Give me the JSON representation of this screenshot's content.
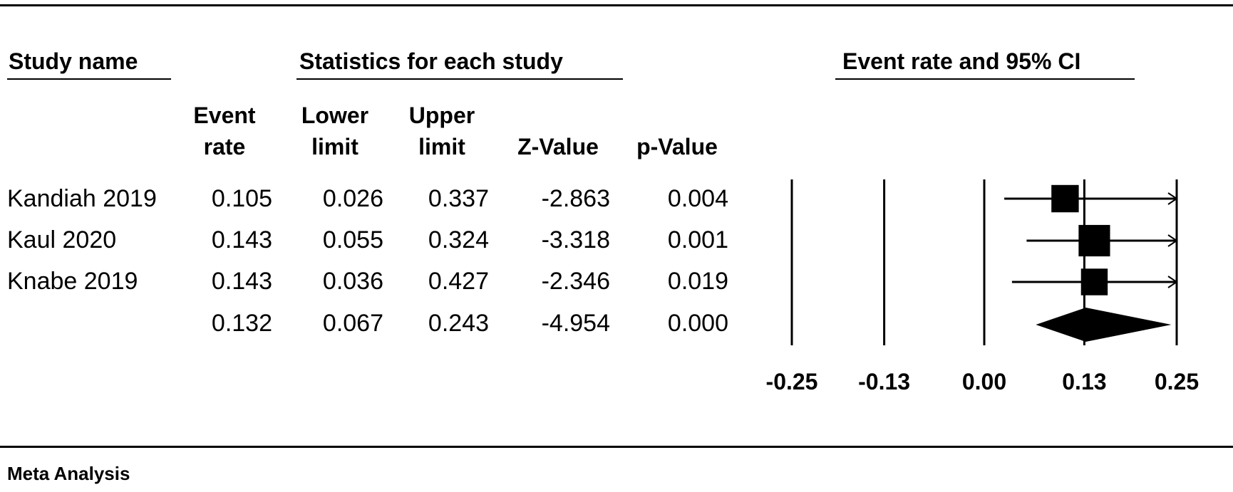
{
  "headers": {
    "study_name": "Study name",
    "statistics": "Statistics for each study",
    "plot": "Event rate and 95% CI"
  },
  "columns": {
    "event_rate": [
      "Event",
      "rate"
    ],
    "lower": [
      "Lower",
      "limit"
    ],
    "upper": [
      "Upper",
      "limit"
    ],
    "z": "Z-Value",
    "p": "p-Value"
  },
  "rows": [
    {
      "study": "Kandiah 2019",
      "event_rate": "0.105",
      "lower": "0.026",
      "upper": "0.337",
      "z": "-2.863",
      "p": "0.004"
    },
    {
      "study": "Kaul 2020",
      "event_rate": "0.143",
      "lower": "0.055",
      "upper": "0.324",
      "z": "-3.318",
      "p": "0.001"
    },
    {
      "study": "Knabe 2019",
      "event_rate": "0.143",
      "lower": "0.036",
      "upper": "0.427",
      "z": "-2.346",
      "p": "0.019"
    },
    {
      "study": "",
      "event_rate": "0.132",
      "lower": "0.067",
      "upper": "0.243",
      "z": "-4.954",
      "p": "0.000"
    }
  ],
  "footer": "Meta Analysis",
  "chart_data": {
    "type": "forest",
    "xlim": [
      -0.25,
      0.25
    ],
    "ticks": [
      -0.25,
      -0.13,
      0.0,
      0.13,
      0.25
    ],
    "tick_labels": [
      "-0.25",
      "-0.13",
      "0.00",
      "0.13",
      "0.25"
    ],
    "studies": [
      {
        "name": "Kandiah 2019",
        "estimate": 0.105,
        "lower": 0.026,
        "upper": 0.337,
        "weight": 0.3
      },
      {
        "name": "Kaul 2020",
        "estimate": 0.143,
        "lower": 0.055,
        "upper": 0.324,
        "weight": 0.42
      },
      {
        "name": "Knabe 2019",
        "estimate": 0.143,
        "lower": 0.036,
        "upper": 0.427,
        "weight": 0.28
      }
    ],
    "summary": {
      "estimate": 0.132,
      "lower": 0.067,
      "upper": 0.243
    }
  }
}
